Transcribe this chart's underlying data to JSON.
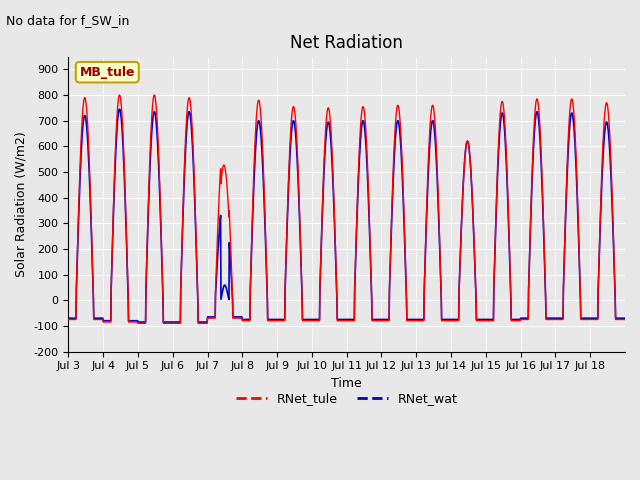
{
  "title": "Net Radiation",
  "subtitle": "No data for f_SW_in",
  "ylabel": "Solar Radiation (W/m2)",
  "xlabel": "Time",
  "ylim": [
    -200,
    950
  ],
  "yticks": [
    -200,
    -100,
    0,
    100,
    200,
    300,
    400,
    500,
    600,
    700,
    800,
    900
  ],
  "xtick_labels": [
    "Jul 3",
    "Jul 4",
    "Jul 5",
    "Jul 6",
    "Jul 7",
    "Jul 8",
    "Jul 9",
    "Jul 10",
    "Jul 11",
    "Jul 12",
    "Jul 13",
    "Jul 14",
    "Jul 15",
    "Jul 16",
    "Jul 17",
    "Jul 18"
  ],
  "legend_label1": "RNet_tule",
  "legend_label2": "RNet_wat",
  "line1_color": "#FF0000",
  "line2_color": "#0000CC",
  "bg_color": "#E8E8E8",
  "plot_bg_color": "#E8E8E8",
  "station_label": "MB_tule",
  "station_label_bg": "#FFFFCC",
  "station_label_border": "#C8A000",
  "n_days": 16,
  "pts_per_day": 96,
  "tule_peaks": [
    790,
    800,
    800,
    790,
    620,
    780,
    755,
    750,
    755,
    760,
    760,
    620,
    775,
    785,
    785,
    770
  ],
  "wat_peaks": [
    720,
    745,
    735,
    735,
    400,
    700,
    700,
    695,
    700,
    700,
    700,
    620,
    730,
    735,
    730,
    695
  ],
  "tule_nights": [
    -75,
    -85,
    -90,
    -90,
    -70,
    -80,
    -80,
    -80,
    -80,
    -80,
    -80,
    -80,
    -80,
    -75,
    -75,
    -75
  ],
  "wat_nights": [
    -70,
    -80,
    -85,
    -85,
    -65,
    -75,
    -75,
    -75,
    -75,
    -75,
    -75,
    -75,
    -75,
    -70,
    -70,
    -70
  ],
  "dawn": 0.22,
  "dusk": 0.72
}
